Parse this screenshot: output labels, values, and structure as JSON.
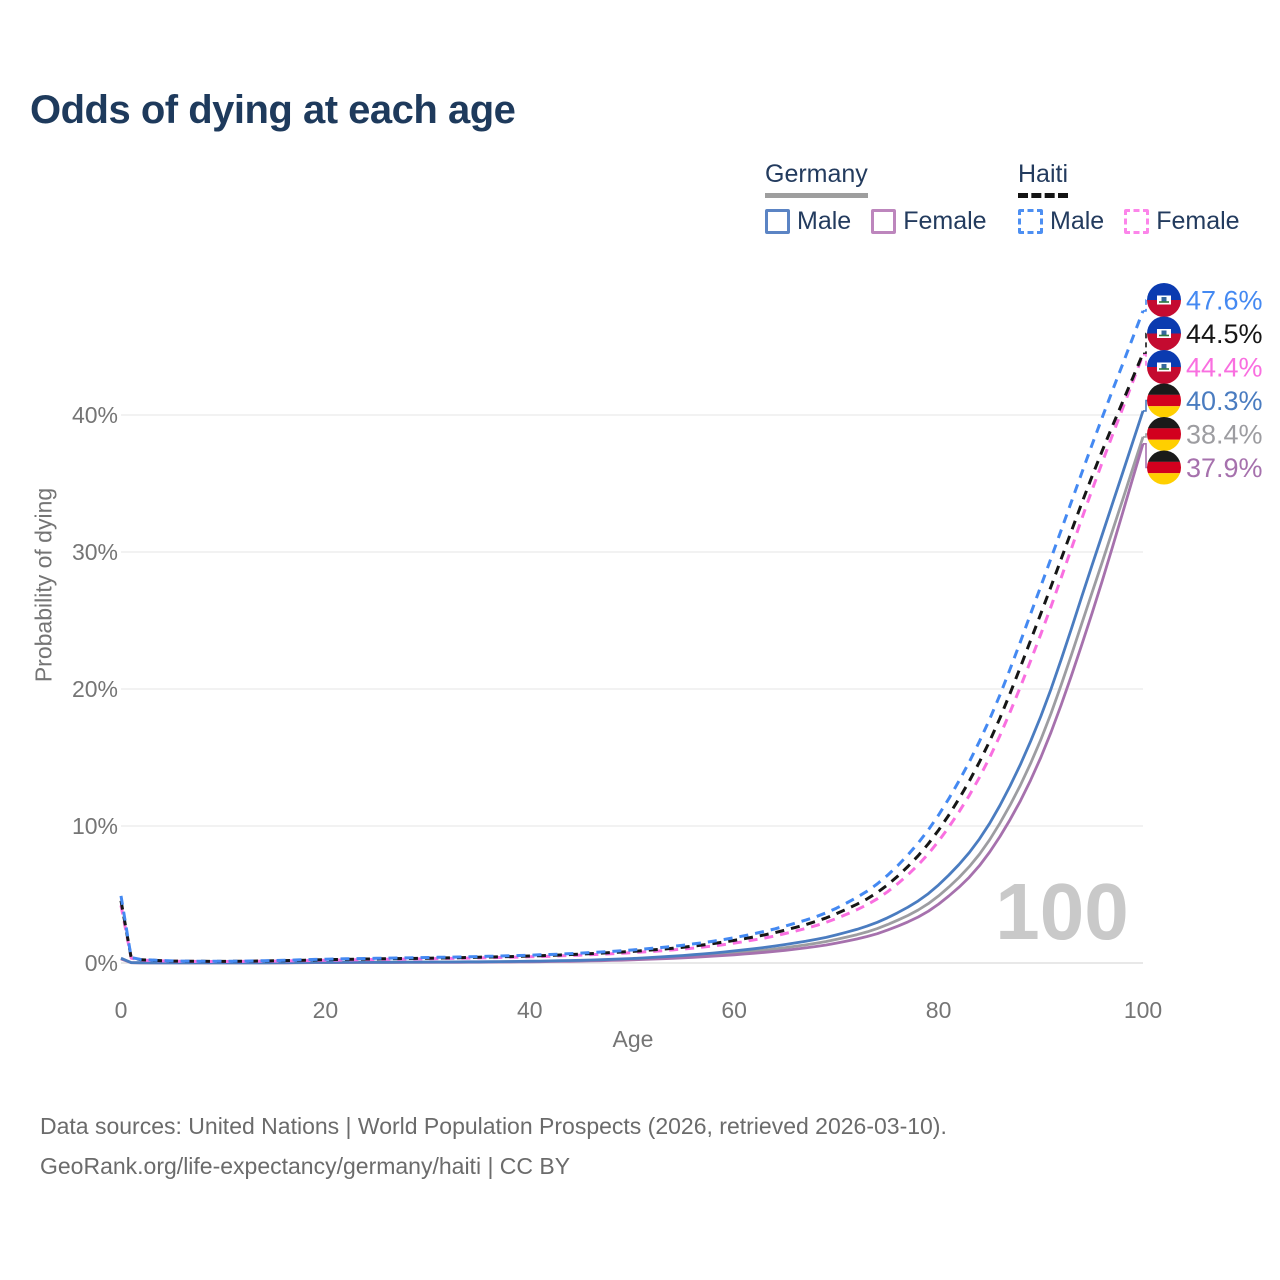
{
  "legend": {
    "groups": [
      {
        "name": "Germany",
        "underline_style": "solid",
        "underline_color": "#9e9e9e",
        "items": [
          {
            "label": "Male",
            "color": "#5b84c4",
            "dashed": false
          },
          {
            "label": "Female",
            "color": "#bd86bd",
            "dashed": false
          }
        ]
      },
      {
        "name": "Haiti",
        "underline_style": "dashed",
        "underline_color": "#141414",
        "items": [
          {
            "label": "Male",
            "color": "#4d8ff2",
            "dashed": true
          },
          {
            "label": "Female",
            "color": "#fc85ea",
            "dashed": true
          }
        ]
      }
    ]
  },
  "chart_data": {
    "type": "line",
    "title": "Odds of dying at each age",
    "xlabel": "Age",
    "ylabel": "Probability of dying",
    "xlim": [
      0,
      100
    ],
    "ylim": [
      0,
      48
    ],
    "grid": "horizontal-only",
    "x_ticks": [
      {
        "label": "0",
        "value": 0
      },
      {
        "label": "20",
        "value": 20
      },
      {
        "label": "40",
        "value": 40
      },
      {
        "label": "60",
        "value": 60
      },
      {
        "label": "80",
        "value": 80
      },
      {
        "label": "100",
        "value": 100
      }
    ],
    "y_ticks": [
      {
        "label": "0%",
        "value": 0
      },
      {
        "label": "10%",
        "value": 10
      },
      {
        "label": "20%",
        "value": 20
      },
      {
        "label": "30%",
        "value": 30
      },
      {
        "label": "40%",
        "value": 40
      }
    ],
    "ages": [
      0,
      1,
      2,
      5,
      10,
      15,
      20,
      25,
      30,
      35,
      40,
      45,
      50,
      55,
      60,
      65,
      70,
      75,
      80,
      85,
      90,
      95,
      100
    ],
    "series": [
      {
        "name": "Haiti Male",
        "country": "Haiti",
        "sex": "Male",
        "color": "#4489f2",
        "dashed": true,
        "flag": "haiti",
        "end_label": "47.6%",
        "values": [
          4.9,
          0.4,
          0.25,
          0.15,
          0.13,
          0.18,
          0.28,
          0.34,
          0.4,
          0.47,
          0.57,
          0.72,
          0.95,
          1.3,
          1.85,
          2.7,
          4.0,
          6.4,
          10.8,
          17.8,
          27.5,
          37.8,
          47.6
        ]
      },
      {
        "name": "Haiti Both sexes",
        "country": "Haiti",
        "sex": "Both",
        "color": "#161616",
        "dashed": true,
        "flag": "haiti",
        "end_label": "44.5%",
        "values": [
          4.55,
          0.38,
          0.23,
          0.14,
          0.12,
          0.16,
          0.24,
          0.3,
          0.35,
          0.42,
          0.51,
          0.65,
          0.85,
          1.15,
          1.65,
          2.4,
          3.6,
          5.7,
          9.7,
          16.2,
          25.5,
          35.5,
          44.5
        ]
      },
      {
        "name": "Haiti Female",
        "country": "Haiti",
        "sex": "Female",
        "color": "#f96fe0",
        "dashed": true,
        "flag": "haiti",
        "end_label": "44.4%",
        "values": [
          4.2,
          0.36,
          0.21,
          0.13,
          0.11,
          0.14,
          0.2,
          0.26,
          0.31,
          0.37,
          0.45,
          0.58,
          0.76,
          1.02,
          1.45,
          2.15,
          3.25,
          5.2,
          8.9,
          15.0,
          24.0,
          34.5,
          44.4
        ]
      },
      {
        "name": "Germany Male",
        "country": "Germany",
        "sex": "Male",
        "color": "#4a7cc0",
        "dashed": false,
        "flag": "germany",
        "end_label": "40.3%",
        "values": [
          0.35,
          0.03,
          0.02,
          0.01,
          0.01,
          0.02,
          0.05,
          0.06,
          0.07,
          0.09,
          0.13,
          0.2,
          0.33,
          0.55,
          0.88,
          1.35,
          2.05,
          3.3,
          5.7,
          10.2,
          18.0,
          29.0,
          40.3
        ]
      },
      {
        "name": "Germany Both sexes",
        "country": "Germany",
        "sex": "Both",
        "color": "#9d9da1",
        "dashed": false,
        "flag": "germany",
        "end_label": "38.4%",
        "values": [
          0.33,
          0.028,
          0.018,
          0.009,
          0.009,
          0.016,
          0.04,
          0.05,
          0.06,
          0.075,
          0.11,
          0.17,
          0.28,
          0.46,
          0.73,
          1.12,
          1.72,
          2.8,
          4.9,
          9.0,
          16.3,
          27.0,
          38.4
        ]
      },
      {
        "name": "Germany Female",
        "country": "Germany",
        "sex": "Female",
        "color": "#a671ad",
        "dashed": false,
        "flag": "germany",
        "end_label": "37.9%",
        "values": [
          0.3,
          0.025,
          0.016,
          0.008,
          0.008,
          0.013,
          0.03,
          0.035,
          0.045,
          0.06,
          0.09,
          0.14,
          0.23,
          0.38,
          0.6,
          0.93,
          1.45,
          2.4,
          4.3,
          8.1,
          15.0,
          25.5,
          37.9
        ]
      }
    ],
    "flag_colors": {
      "haiti": {
        "top": "#0b3bb0",
        "bottom": "#c40b30",
        "emblem": "#ffffff"
      },
      "germany": {
        "black": "#1a1a1a",
        "red": "#d2001e",
        "gold": "#ffcf00"
      }
    }
  },
  "watermark": "100",
  "footer": {
    "line1": "Data sources: United Nations | World Population Prospects (2026, retrieved 2026-03-10).",
    "line2": "GeoRank.org/life-expectancy/germany/haiti | CC BY"
  }
}
